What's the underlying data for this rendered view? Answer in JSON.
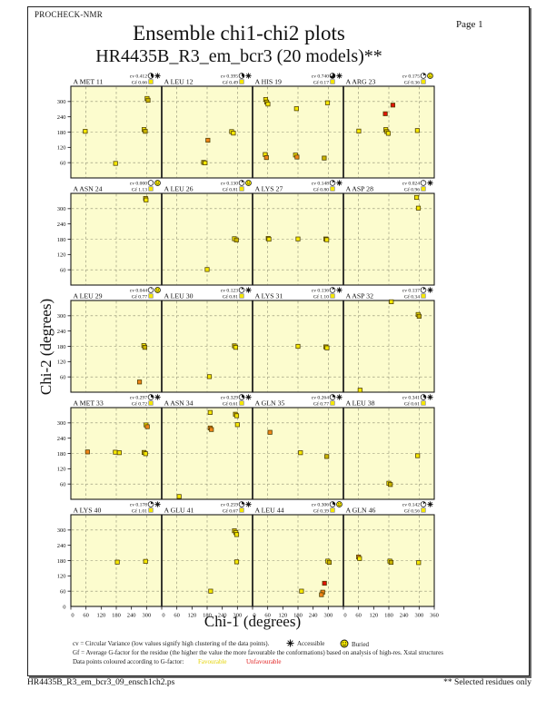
{
  "header": {
    "app_name": "PROCHECK-NMR",
    "page_label": "Page  1",
    "title": "Ensemble chi1-chi2 plots",
    "subtitle": "HR4435B_R3_em_bcr3 (20 models)**"
  },
  "axes": {
    "xlabel": "Chi-1 (degrees)",
    "ylabel": "Chi-2 (degrees)"
  },
  "legend": {
    "line1": "cv = Circular Variance (low values signify high clustering of the data points).",
    "accessible_label": "Accessible",
    "buried_label": "Buried",
    "line2": "Gf = Average G-factor for the residue (the higher the value the more favourable the conformations)  based on analysis of high-res. Xstal structures",
    "line3": "Data points coloured according to G-factor:",
    "favourable_label": "Favourable",
    "unfavourable_label": "Unfavourable"
  },
  "footer": {
    "left": "HR4435B_R3_em_bcr3_09_ensch1ch2.ps",
    "right": "** Selected residues only"
  },
  "colors": {
    "plot_bg": "#FCFCCE",
    "frame": "#222222",
    "favourable_text": "#E3D200",
    "unfavourable_text": "#E02020",
    "points": {
      "y": "#F6E800",
      "d": "#C9B400",
      "o": "#EF8418",
      "r": "#DF1507"
    }
  },
  "chart_data": {
    "type": "scatter",
    "title": "Ensemble chi1-chi2 plots",
    "subtitle": "HR4435B_R3_em_bcr3 (20 models)**",
    "xlabel": "Chi-1 (degrees)",
    "ylabel": "Chi-2 (degrees)",
    "xlim": [
      0,
      360
    ],
    "ylim": [
      0,
      360
    ],
    "xticks": [
      0,
      60,
      120,
      180,
      240,
      300,
      360
    ],
    "yticks": [
      60,
      120,
      180,
      240,
      300
    ],
    "grid_dashed_at": [
      60,
      180,
      300
    ],
    "grid": {
      "rows": 5,
      "cols": 4
    },
    "point_color_legend": {
      "y": "favourable yellow",
      "d": "dark yellow overlap",
      "o": "orange intermediate",
      "r": "unfavourable red"
    },
    "subplots": [
      {
        "label": "A MET 11",
        "cv": "0.412",
        "gf": "0.66",
        "surface": "accessible",
        "points": [
          [
            302,
            312,
            "y"
          ],
          [
            306,
            305,
            "d"
          ],
          [
            57,
            183,
            "y"
          ],
          [
            290,
            190,
            "y"
          ],
          [
            295,
            183,
            "d"
          ],
          [
            177,
            57,
            "y"
          ]
        ]
      },
      {
        "label": "A LEU 12",
        "cv": "0.395",
        "gf": "0.49",
        "surface": "accessible",
        "points": [
          [
            183,
            148,
            "o"
          ],
          [
            166,
            61,
            "d"
          ],
          [
            172,
            59,
            "y"
          ],
          [
            277,
            182,
            "y"
          ],
          [
            284,
            176,
            "y"
          ]
        ]
      },
      {
        "label": "A HIS 19",
        "cv": "0.740",
        "gf": "0.17",
        "surface": "accessible",
        "points": [
          [
            52,
            308,
            "y"
          ],
          [
            56,
            298,
            "d"
          ],
          [
            61,
            290,
            "y"
          ],
          [
            174,
            272,
            "y"
          ],
          [
            297,
            295,
            "y"
          ],
          [
            50,
            92,
            "y"
          ],
          [
            55,
            80,
            "o"
          ],
          [
            170,
            90,
            "y"
          ],
          [
            176,
            82,
            "o"
          ],
          [
            284,
            78,
            "d"
          ]
        ]
      },
      {
        "label": "A ARG 23",
        "cv": "0.175",
        "gf": "0.36",
        "surface": "buried",
        "points": [
          [
            196,
            286,
            "r"
          ],
          [
            166,
            252,
            "r"
          ],
          [
            61,
            184,
            "y"
          ],
          [
            168,
            190,
            "y"
          ],
          [
            172,
            182,
            "d"
          ],
          [
            178,
            175,
            "y"
          ],
          [
            293,
            186,
            "y"
          ]
        ]
      },
      {
        "label": "A ASN 24",
        "cv": "0.000",
        "gf": "1.13",
        "surface": "buried",
        "points": [
          [
            296,
            340,
            "d"
          ],
          [
            298,
            334,
            "y"
          ]
        ]
      },
      {
        "label": "A LEU 26",
        "cv": "0.130",
        "gf": "0.81",
        "surface": "buried",
        "points": [
          [
            288,
            182,
            "y"
          ],
          [
            296,
            177,
            "d"
          ],
          [
            180,
            61,
            "y"
          ]
        ]
      },
      {
        "label": "A LYS 27",
        "cv": "0.148",
        "gf": "0.80",
        "surface": "accessible",
        "points": [
          [
            62,
            183,
            "d"
          ],
          [
            65,
            180,
            "y"
          ],
          [
            180,
            181,
            "y"
          ],
          [
            290,
            181,
            "d"
          ],
          [
            294,
            178,
            "y"
          ]
        ]
      },
      {
        "label": "A ASP 28",
        "cv": "0.024",
        "gf": "0.96",
        "surface": "accessible",
        "points": [
          [
            290,
            344,
            "y"
          ],
          [
            297,
            302,
            "y"
          ]
        ]
      },
      {
        "label": "A LEU 29",
        "cv": "0.044",
        "gf": "0.77",
        "surface": "buried",
        "points": [
          [
            289,
            183,
            "y"
          ],
          [
            293,
            176,
            "d"
          ],
          [
            272,
            40,
            "o"
          ]
        ]
      },
      {
        "label": "A LEU 30",
        "cv": "0.123",
        "gf": "0.81",
        "surface": "accessible",
        "points": [
          [
            288,
            182,
            "d"
          ],
          [
            293,
            176,
            "y"
          ],
          [
            189,
            61,
            "y"
          ]
        ]
      },
      {
        "label": "A LYS 31",
        "cv": "0.136",
        "gf": "1.10",
        "surface": "accessible",
        "points": [
          [
            180,
            180,
            "y"
          ],
          [
            290,
            178,
            "d"
          ],
          [
            295,
            174,
            "y"
          ]
        ]
      },
      {
        "label": "A ASP 32",
        "cv": "0.137",
        "gf": "0.34",
        "surface": "accessible",
        "points": [
          [
            190,
            355,
            "y"
          ],
          [
            296,
            305,
            "y"
          ],
          [
            300,
            298,
            "d"
          ],
          [
            66,
            8,
            "y"
          ]
        ]
      },
      {
        "label": "A MET 33",
        "cv": "0.297",
        "gf": "0.72",
        "surface": "accessible",
        "points": [
          [
            66,
            186,
            "o"
          ],
          [
            176,
            185,
            "y"
          ],
          [
            192,
            183,
            "y"
          ],
          [
            290,
            184,
            "d"
          ],
          [
            296,
            179,
            "y"
          ],
          [
            298,
            292,
            "y"
          ],
          [
            303,
            285,
            "o"
          ]
        ]
      },
      {
        "label": "A ASN 34",
        "cv": "0.329",
        "gf": "0.61",
        "surface": "accessible",
        "points": [
          [
            192,
            341,
            "y"
          ],
          [
            292,
            334,
            "d"
          ],
          [
            297,
            328,
            "y"
          ],
          [
            300,
            293,
            "y"
          ],
          [
            192,
            280,
            "o"
          ],
          [
            197,
            274,
            "o"
          ],
          [
            69,
            11,
            "y"
          ]
        ]
      },
      {
        "label": "A GLN 35",
        "cv": "0.264",
        "gf": "0.77",
        "surface": "accessible",
        "points": [
          [
            69,
            263,
            "o"
          ],
          [
            190,
            183,
            "y"
          ],
          [
            294,
            168,
            "d"
          ]
        ]
      },
      {
        "label": "A LEU 38",
        "cv": "0.341",
        "gf": "0.61",
        "surface": "accessible",
        "points": [
          [
            180,
            63,
            "y"
          ],
          [
            186,
            58,
            "d"
          ],
          [
            294,
            171,
            "y"
          ]
        ]
      },
      {
        "label": "A LYS 40",
        "cv": "0.178",
        "gf": "1.01",
        "surface": "accessible",
        "points": [
          [
            184,
            174,
            "y"
          ],
          [
            296,
            177,
            "y"
          ]
        ]
      },
      {
        "label": "A GLU 41",
        "cv": "0.259",
        "gf": "0.67",
        "surface": "accessible",
        "points": [
          [
            288,
            297,
            "d"
          ],
          [
            294,
            290,
            "y"
          ],
          [
            297,
            282,
            "y"
          ],
          [
            297,
            175,
            "y"
          ],
          [
            194,
            60,
            "y"
          ]
        ]
      },
      {
        "label": "A LEU 44",
        "cv": "0.306",
        "gf": "0.39",
        "surface": "buried",
        "points": [
          [
            298,
            178,
            "y"
          ],
          [
            304,
            173,
            "d"
          ],
          [
            194,
            60,
            "y"
          ],
          [
            285,
            91,
            "r"
          ],
          [
            278,
            56,
            "o"
          ],
          [
            273,
            46,
            "o"
          ]
        ]
      },
      {
        "label": "A GLN 46",
        "cv": "0.142",
        "gf": "0.56",
        "surface": "accessible",
        "points": [
          [
            60,
            194,
            "o"
          ],
          [
            64,
            188,
            "y"
          ],
          [
            184,
            178,
            "y"
          ],
          [
            189,
            173,
            "d"
          ],
          [
            298,
            172,
            "y"
          ]
        ]
      }
    ]
  }
}
